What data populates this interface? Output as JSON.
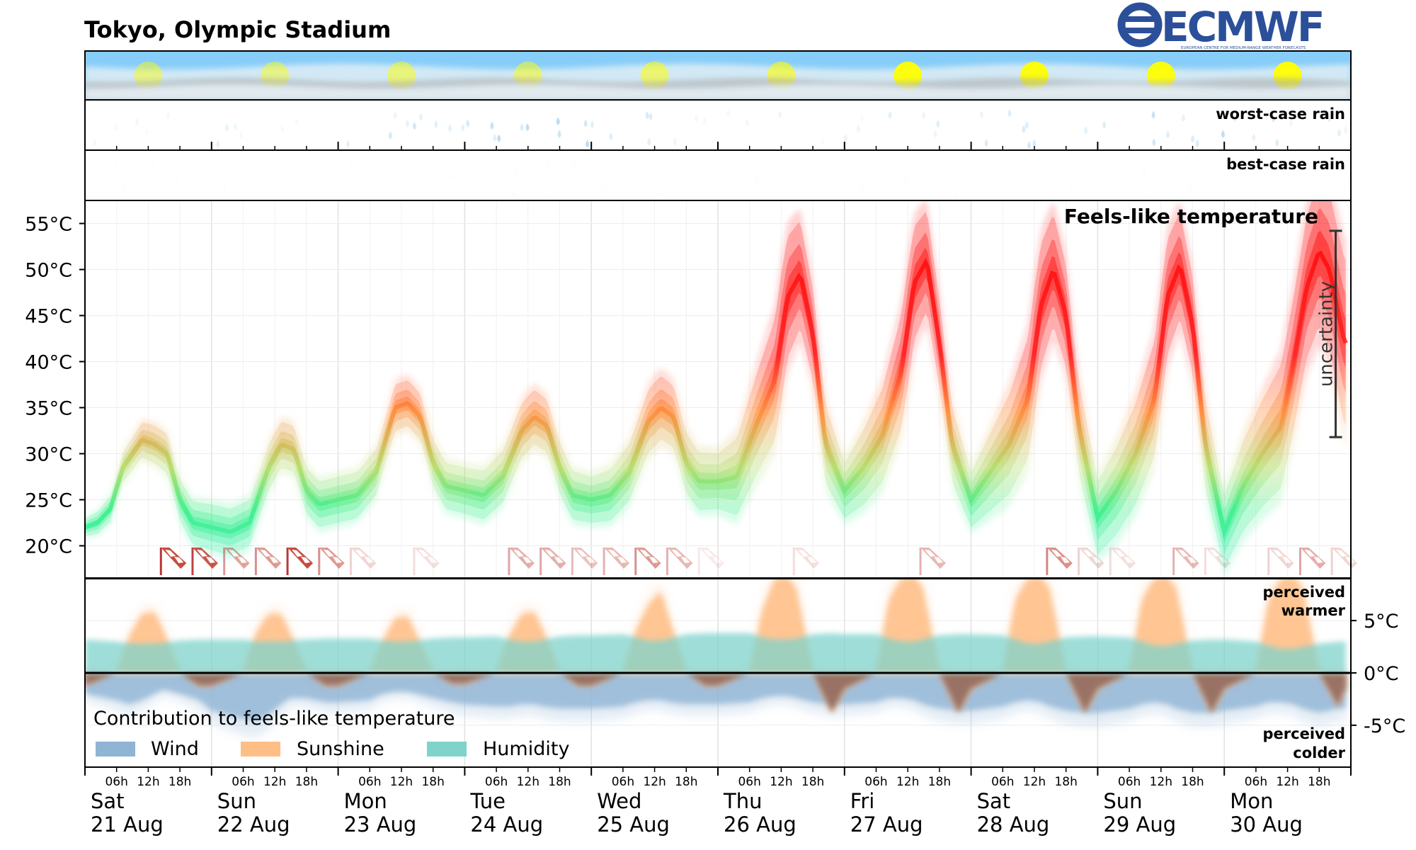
{
  "header": {
    "title": "Tokyo, Olympic Stadium",
    "logo_text": "ECMWF",
    "logo_subtext": "EUROPEAN CENTRE FOR MEDIUM-RANGE WEATHER FORECASTS"
  },
  "colors": {
    "sky": "#87cdf9",
    "sun": "#ffff00",
    "rain": "#8ec6e8",
    "temp_hot": "#ff0000",
    "temp_warm": "#ff8a3a",
    "temp_mild": "#b5dc6b",
    "temp_cool": "#3ef08c",
    "wind": "#8fb4d4",
    "sunshine": "#ffbe86",
    "humidity": "#7fd3cb",
    "logo": "#2b4f99"
  },
  "panels": {
    "worst_rain_label": "worst-case rain",
    "best_rain_label": "best-case rain",
    "feels_like_title": "Feels-like temperature",
    "uncertainty_label": "uncertainty",
    "perceived_warmer": [
      "perceived",
      "warmer"
    ],
    "perceived_colder": [
      "perceived",
      "colder"
    ]
  },
  "legend": {
    "title": "Contribution to feels-like temperature",
    "items": [
      {
        "label": "Wind",
        "color": "#8fb4d4"
      },
      {
        "label": "Sunshine",
        "color": "#ffbe86"
      },
      {
        "label": "Humidity",
        "color": "#7fd3cb"
      }
    ]
  },
  "x_axis": {
    "hour_ticks": [
      "06h",
      "12h",
      "18h"
    ],
    "days": [
      {
        "weekday": "Sat",
        "date": "21 Aug"
      },
      {
        "weekday": "Sun",
        "date": "22 Aug"
      },
      {
        "weekday": "Mon",
        "date": "23 Aug"
      },
      {
        "weekday": "Tue",
        "date": "24 Aug"
      },
      {
        "weekday": "Wed",
        "date": "25 Aug"
      },
      {
        "weekday": "Thu",
        "date": "26 Aug"
      },
      {
        "weekday": "Fri",
        "date": "27 Aug"
      },
      {
        "weekday": "Sat",
        "date": "28 Aug"
      },
      {
        "weekday": "Sun",
        "date": "29 Aug"
      },
      {
        "weekday": "Mon",
        "date": "30 Aug"
      }
    ]
  },
  "chart_data": {
    "type": "area",
    "title": "Feels-like temperature",
    "x_unit": "days from 21 Aug 00h",
    "temp_axis": {
      "ticks": [
        20,
        25,
        30,
        35,
        40,
        45,
        50,
        55
      ],
      "tick_labels": [
        "20°C",
        "25°C",
        "30°C",
        "35°C",
        "40°C",
        "45°C",
        "50°C",
        "55°C"
      ],
      "ylim": [
        16.5,
        57.5
      ]
    },
    "contribution_axis": {
      "ticks": [
        5,
        0,
        -5
      ],
      "tick_labels": [
        "5°C",
        "0°C",
        "-5°C"
      ],
      "ylim": [
        -9,
        9
      ]
    },
    "feels_like_median": {
      "x": [
        0,
        0.1,
        0.2,
        0.3,
        0.45,
        0.55,
        0.65,
        0.75,
        0.85,
        1.0,
        1.15,
        1.3,
        1.45,
        1.55,
        1.65,
        1.75,
        1.85,
        2.0,
        2.15,
        2.3,
        2.45,
        2.55,
        2.65,
        2.75,
        2.85,
        3.0,
        3.15,
        3.3,
        3.45,
        3.55,
        3.65,
        3.75,
        3.85,
        4.0,
        4.15,
        4.3,
        4.45,
        4.55,
        4.65,
        4.75,
        4.85,
        5.0,
        5.15,
        5.3,
        5.45,
        5.55,
        5.65,
        5.75,
        5.85,
        6.0,
        6.15,
        6.3,
        6.45,
        6.55,
        6.65,
        6.75,
        6.85,
        7.0,
        7.15,
        7.3,
        7.45,
        7.55,
        7.65,
        7.75,
        7.85,
        8.0,
        8.15,
        8.3,
        8.45,
        8.55,
        8.65,
        8.75,
        8.85,
        9.0,
        9.15,
        9.3,
        9.45,
        9.55,
        9.65,
        9.75,
        9.83,
        9.95
      ],
      "y": [
        22,
        22.5,
        24,
        28.5,
        31.5,
        31,
        30,
        25,
        22.5,
        22,
        21.5,
        22.5,
        28.5,
        31,
        30.5,
        26,
        24.5,
        25,
        25.5,
        28,
        35,
        35.5,
        34,
        29,
        26.5,
        26,
        25.5,
        27.5,
        32.5,
        34,
        33,
        28.5,
        25.5,
        25,
        25.5,
        28,
        33.5,
        35,
        34,
        29,
        27,
        27,
        27.5,
        33,
        38,
        47,
        49.5,
        43,
        31,
        26,
        28.5,
        32,
        39,
        48.5,
        51,
        42,
        31,
        25,
        28,
        31,
        36,
        46,
        50,
        45,
        33,
        23,
        26,
        30,
        36,
        47,
        50.5,
        44,
        31,
        21.5,
        26.5,
        30,
        33,
        40,
        48,
        52,
        50,
        42
      ]
    },
    "feels_like_spread": {
      "x": [
        0,
        0.5,
        1.0,
        1.5,
        2.0,
        2.5,
        3.0,
        3.5,
        4.0,
        4.5,
        5.0,
        5.5,
        6.0,
        6.5,
        7.0,
        7.5,
        8.0,
        8.5,
        9.0,
        9.5,
        9.95
      ],
      "half_width": [
        1,
        2,
        2.5,
        2.5,
        2.5,
        2.5,
        2.5,
        3,
        2.5,
        3.5,
        3,
        7,
        3,
        6.5,
        3,
        7,
        4,
        6.5,
        4,
        7,
        9
      ]
    },
    "uncertainty_bar": {
      "x": 9.88,
      "y_min": 31.8,
      "y_max": 54.2
    },
    "contributions": {
      "x": [
        0,
        0.25,
        0.35,
        0.45,
        0.55,
        0.62,
        0.75,
        0.9,
        1.0,
        1.25,
        1.35,
        1.45,
        1.55,
        1.62,
        1.75,
        1.9,
        2.0,
        2.25,
        2.35,
        2.45,
        2.55,
        2.62,
        2.75,
        2.9,
        3.0,
        3.25,
        3.35,
        3.45,
        3.55,
        3.62,
        3.75,
        3.9,
        4.0,
        4.25,
        4.35,
        4.45,
        4.55,
        4.62,
        4.75,
        4.9,
        5.0,
        5.25,
        5.35,
        5.45,
        5.55,
        5.62,
        5.75,
        5.9,
        6.0,
        6.25,
        6.35,
        6.45,
        6.55,
        6.62,
        6.75,
        6.9,
        7.0,
        7.25,
        7.35,
        7.45,
        7.55,
        7.62,
        7.75,
        7.9,
        8.0,
        8.25,
        8.35,
        8.45,
        8.55,
        8.62,
        8.75,
        8.9,
        9.0,
        9.25,
        9.35,
        9.45,
        9.55,
        9.62,
        9.75,
        9.9,
        9.95
      ],
      "sunshine": [
        -1.2,
        0.2,
        3.5,
        5.6,
        5.8,
        4.0,
        0.2,
        -1.2,
        -1.2,
        0.2,
        3.8,
        5.6,
        5.6,
        3.8,
        0.2,
        -1.2,
        -1.2,
        0.2,
        3.0,
        5.2,
        5.4,
        3.6,
        0.2,
        -1.0,
        -1.0,
        0.2,
        3.5,
        5.6,
        5.8,
        4.0,
        0.2,
        -1.2,
        -1.2,
        0.2,
        4.0,
        6.5,
        7.8,
        5.0,
        0.2,
        -1.2,
        -1.2,
        0.2,
        6.0,
        9.0,
        9.2,
        8.0,
        0.2,
        -3.8,
        -1.5,
        0.2,
        7.0,
        9.0,
        9.2,
        8.0,
        0.2,
        -3.8,
        -1.5,
        0.2,
        7.0,
        9.0,
        9.2,
        8.0,
        0.2,
        -3.8,
        -1.5,
        0.2,
        7.0,
        9.0,
        9.2,
        8.0,
        0.2,
        -3.8,
        -1.5,
        0.2,
        7.0,
        9.0,
        9.2,
        8.0,
        0.2,
        -3.2,
        -1.5
      ],
      "humidity": [
        3.2,
        3.0,
        2.8,
        2.8,
        2.8,
        2.9,
        3.1,
        3.2,
        3.2,
        3.2,
        3.0,
        3.0,
        3.0,
        3.1,
        3.2,
        3.3,
        3.3,
        3.3,
        3.1,
        3.0,
        3.0,
        3.1,
        3.3,
        3.4,
        3.4,
        3.5,
        3.2,
        3.0,
        3.0,
        3.2,
        3.5,
        3.6,
        3.6,
        3.7,
        3.4,
        3.1,
        3.1,
        3.3,
        3.7,
        3.8,
        3.8,
        3.8,
        3.4,
        3.2,
        3.2,
        3.3,
        3.7,
        3.8,
        3.7,
        3.7,
        3.3,
        3.0,
        3.0,
        3.2,
        3.6,
        3.7,
        3.7,
        3.6,
        3.2,
        2.8,
        2.8,
        3.0,
        3.4,
        3.5,
        3.5,
        3.4,
        3.0,
        2.6,
        2.6,
        2.8,
        3.1,
        3.2,
        3.2,
        3.0,
        2.6,
        2.3,
        2.3,
        2.5,
        2.8,
        3.0,
        3.0
      ],
      "wind": [
        -2.0,
        -2.6,
        -3.0,
        -2.6,
        -2.0,
        -1.6,
        -2.0,
        -2.6,
        -3.6,
        -4.4,
        -4.6,
        -4.0,
        -3.0,
        -2.4,
        -2.4,
        -2.8,
        -2.8,
        -2.6,
        -2.0,
        -1.8,
        -1.8,
        -2.0,
        -2.4,
        -2.8,
        -3.0,
        -3.2,
        -3.2,
        -3.0,
        -3.0,
        -3.2,
        -3.4,
        -3.4,
        -3.4,
        -3.2,
        -2.8,
        -2.6,
        -2.6,
        -2.8,
        -3.0,
        -3.0,
        -3.0,
        -2.8,
        -2.4,
        -2.2,
        -2.2,
        -2.4,
        -2.8,
        -3.0,
        -3.0,
        -2.8,
        -2.4,
        -2.4,
        -2.6,
        -3.0,
        -3.4,
        -3.6,
        -3.6,
        -3.2,
        -2.8,
        -2.6,
        -2.8,
        -3.2,
        -3.6,
        -3.8,
        -3.8,
        -3.4,
        -3.0,
        -2.8,
        -3.0,
        -3.4,
        -3.8,
        -3.8,
        -3.6,
        -3.2,
        -2.8,
        -2.8,
        -3.0,
        -3.4,
        -3.8,
        -3.4,
        -3.4
      ]
    },
    "sun_days": [
      0,
      1,
      2,
      3,
      4,
      5,
      6,
      7,
      8,
      9
    ],
    "sun_intensity": [
      0.45,
      0.45,
      0.5,
      0.5,
      0.55,
      0.6,
      0.95,
      0.95,
      0.95,
      0.95
    ],
    "rain_worst_intensity": [
      0.1,
      0.15,
      0.35,
      0.45,
      0.25,
      0.1,
      0.2,
      0.3,
      0.35,
      0.3
    ],
    "rain_best_intensity": [
      0.03,
      0.02,
      0.02,
      0.05,
      0.02,
      0.02,
      0.02,
      0.03,
      0.02,
      0.02
    ],
    "wind_flags": {
      "x": [
        0.6,
        0.85,
        1.1,
        1.35,
        1.6,
        1.85,
        2.1,
        2.6,
        3.35,
        3.6,
        3.85,
        4.1,
        4.35,
        4.6,
        4.85,
        5.6,
        6.6,
        7.6,
        7.85,
        8.1,
        8.6,
        8.85,
        9.35,
        9.6,
        9.85
      ],
      "alpha": [
        0.9,
        0.85,
        0.45,
        0.5,
        0.9,
        0.5,
        0.2,
        0.15,
        0.4,
        0.4,
        0.3,
        0.35,
        0.5,
        0.35,
        0.1,
        0.15,
        0.35,
        0.55,
        0.2,
        0.15,
        0.35,
        0.15,
        0.2,
        0.4,
        0.2
      ]
    }
  }
}
